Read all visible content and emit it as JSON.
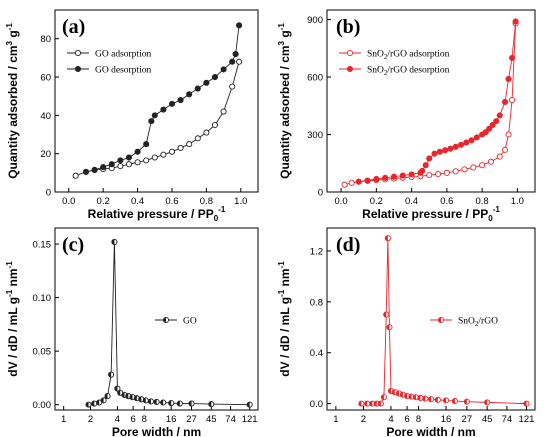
{
  "figure": {
    "panels": [
      "(a)",
      "(b)",
      "(c)",
      "(d)"
    ]
  },
  "chart_data": [
    {
      "id": "a",
      "panel_label": "(a)",
      "type": "line",
      "xlabel": "Relative pressure / PP",
      "xlabel_sub": "0",
      "xlabel_sup": "-1",
      "ylabel": "Quantity adsorbed / cm",
      "ylabel_sup1": "3",
      "ylabel_mid": " g",
      "ylabel_sup2": "-1",
      "xlim": [
        -0.08,
        1.1
      ],
      "ylim": [
        0,
        95
      ],
      "xticks": [
        0.0,
        0.2,
        0.4,
        0.6,
        0.8,
        1.0
      ],
      "xtick_labels": [
        "0.0",
        "0.2",
        "0.4",
        "0.6",
        "0.8",
        "1.0"
      ],
      "yticks": [
        0,
        20,
        40,
        60,
        80
      ],
      "ytick_labels": [
        "0",
        "20",
        "40",
        "60",
        "80"
      ],
      "legend_position": "upper-left",
      "color": "#222222",
      "series": [
        {
          "name": "GO adsorption",
          "marker": "open",
          "x": [
            0.04,
            0.1,
            0.15,
            0.2,
            0.25,
            0.3,
            0.35,
            0.4,
            0.45,
            0.5,
            0.55,
            0.6,
            0.65,
            0.7,
            0.75,
            0.8,
            0.85,
            0.9,
            0.95,
            0.99
          ],
          "y": [
            8.5,
            10.5,
            11.5,
            12,
            12.5,
            13.5,
            14.5,
            15.5,
            16.5,
            18,
            19.5,
            21,
            23,
            25,
            28,
            31,
            35,
            42,
            55,
            68
          ]
        },
        {
          "name": "GO desorption",
          "marker": "filled",
          "x": [
            0.99,
            0.97,
            0.95,
            0.9,
            0.85,
            0.8,
            0.75,
            0.7,
            0.65,
            0.6,
            0.55,
            0.5,
            0.48,
            0.45,
            0.4,
            0.35,
            0.3,
            0.25,
            0.2,
            0.15,
            0.1
          ],
          "y": [
            87,
            72,
            68,
            64,
            60,
            57,
            54,
            51,
            48,
            46,
            43,
            40,
            37,
            25,
            21,
            18,
            16.5,
            14.5,
            13,
            11.5,
            10.5
          ]
        }
      ]
    },
    {
      "id": "b",
      "panel_label": "(b)",
      "type": "line",
      "xlabel": "Relative pressure / PP",
      "xlabel_sub": "0",
      "xlabel_sup": "-1",
      "ylabel": "Quantity adsorbed / cm",
      "ylabel_sup1": "3",
      "ylabel_mid": " g",
      "ylabel_sup2": "-1",
      "xlim": [
        -0.08,
        1.1
      ],
      "ylim": [
        0,
        950
      ],
      "xticks": [
        0.0,
        0.2,
        0.4,
        0.6,
        0.8,
        1.0
      ],
      "xtick_labels": [
        "0.0",
        "0.2",
        "0.4",
        "0.6",
        "0.8",
        "1.0"
      ],
      "yticks": [
        0,
        300,
        600,
        900
      ],
      "ytick_labels": [
        "0",
        "300",
        "600",
        "900"
      ],
      "legend_position": "upper-left",
      "color": "#e8262b",
      "series": [
        {
          "name": "SnO2/rGO adsorption",
          "name_main": "SnO",
          "name_sub": "2",
          "name_rest": "/rGO adsorption",
          "marker": "open",
          "x": [
            0.02,
            0.06,
            0.1,
            0.15,
            0.2,
            0.25,
            0.3,
            0.35,
            0.4,
            0.45,
            0.5,
            0.55,
            0.6,
            0.65,
            0.7,
            0.75,
            0.8,
            0.85,
            0.9,
            0.93,
            0.95,
            0.97,
            0.99
          ],
          "y": [
            38,
            48,
            54,
            58,
            62,
            66,
            70,
            74,
            78,
            82,
            88,
            94,
            100,
            108,
            118,
            128,
            140,
            158,
            185,
            220,
            300,
            480,
            880
          ]
        },
        {
          "name": "SnO2/rGO desorption",
          "name_main": "SnO",
          "name_sub": "2",
          "name_rest": "/rGO desorption",
          "marker": "filled",
          "x": [
            0.99,
            0.97,
            0.95,
            0.93,
            0.9,
            0.88,
            0.86,
            0.84,
            0.82,
            0.8,
            0.77,
            0.74,
            0.71,
            0.68,
            0.65,
            0.62,
            0.59,
            0.56,
            0.53,
            0.5,
            0.48,
            0.46,
            0.45,
            0.4,
            0.35,
            0.3,
            0.25,
            0.2,
            0.15,
            0.1
          ],
          "y": [
            890,
            700,
            590,
            470,
            400,
            370,
            350,
            330,
            312,
            300,
            285,
            270,
            258,
            246,
            236,
            226,
            218,
            210,
            200,
            175,
            140,
            110,
            100,
            92,
            86,
            80,
            74,
            68,
            60,
            54
          ]
        }
      ]
    },
    {
      "id": "c",
      "panel_label": "(c)",
      "type": "line",
      "xlabel": "Pore width / nm",
      "ylabel": "dV / dD / mL g",
      "ylabel_sup": "-1",
      "ylabel_rest": " nm",
      "ylabel_sup2": "-1",
      "xscale": "log2",
      "xlim": [
        0.8,
        150
      ],
      "ylim": [
        -0.005,
        0.165
      ],
      "xticks": [
        1,
        2,
        4,
        6,
        8,
        16,
        27,
        45,
        74,
        121
      ],
      "xtick_labels": [
        "1",
        "2",
        "4",
        "6",
        "8",
        "16",
        "27",
        "45",
        "74",
        "121"
      ],
      "yticks": [
        0.0,
        0.05,
        0.1,
        0.15
      ],
      "ytick_labels": [
        "0.00",
        "0.05",
        "0.10",
        "0.15"
      ],
      "legend_position": "right",
      "color": "#222222",
      "series": [
        {
          "name": "GO",
          "x": [
            1.9,
            2.2,
            2.5,
            2.8,
            3.1,
            3.4,
            3.7,
            4.0,
            4.3,
            4.8,
            5.3,
            5.9,
            6.6,
            7.4,
            8.3,
            9.5,
            11,
            13,
            16,
            20,
            27,
            45,
            121
          ],
          "y": [
            0.0,
            0.001,
            0.002,
            0.004,
            0.008,
            0.028,
            0.152,
            0.015,
            0.011,
            0.009,
            0.008,
            0.007,
            0.006,
            0.005,
            0.004,
            0.003,
            0.0025,
            0.002,
            0.0015,
            0.001,
            0.001,
            0.0005,
            0.0
          ]
        }
      ]
    },
    {
      "id": "d",
      "panel_label": "(d)",
      "type": "line",
      "xlabel": "Pore width / nm",
      "ylabel": "dV / dD / mL g",
      "ylabel_sup": "-1",
      "ylabel_rest": " nm",
      "ylabel_sup2": "-1",
      "xscale": "log2",
      "xlim": [
        0.8,
        150
      ],
      "ylim": [
        -0.05,
        1.38
      ],
      "xticks": [
        1,
        2,
        4,
        6,
        8,
        16,
        27,
        45,
        74,
        121
      ],
      "xtick_labels": [
        "1",
        "2",
        "4",
        "6",
        "8",
        "16",
        "27",
        "45",
        "74",
        "121"
      ],
      "yticks": [
        0.0,
        0.4,
        0.8,
        1.2
      ],
      "ytick_labels": [
        "0.0",
        "0.4",
        "0.8",
        "1.2"
      ],
      "legend_position": "right",
      "color": "#e8262b",
      "series": [
        {
          "name": "SnO2/rGO",
          "name_main": "SnO",
          "name_sub": "2",
          "name_rest": "/rGO",
          "x": [
            1.9,
            2.2,
            2.5,
            2.8,
            3.1,
            3.35,
            3.55,
            3.7,
            3.85,
            4.0,
            4.4,
            4.9,
            5.4,
            6.0,
            6.7,
            7.5,
            8.4,
            9.5,
            11,
            13,
            16,
            20,
            27,
            45,
            121
          ],
          "y": [
            0.0,
            0.0,
            0.0,
            0.0,
            0.0,
            0.05,
            0.7,
            1.3,
            0.6,
            0.1,
            0.09,
            0.08,
            0.07,
            0.06,
            0.055,
            0.05,
            0.045,
            0.04,
            0.035,
            0.03,
            0.025,
            0.02,
            0.015,
            0.01,
            0.0
          ]
        }
      ]
    }
  ]
}
